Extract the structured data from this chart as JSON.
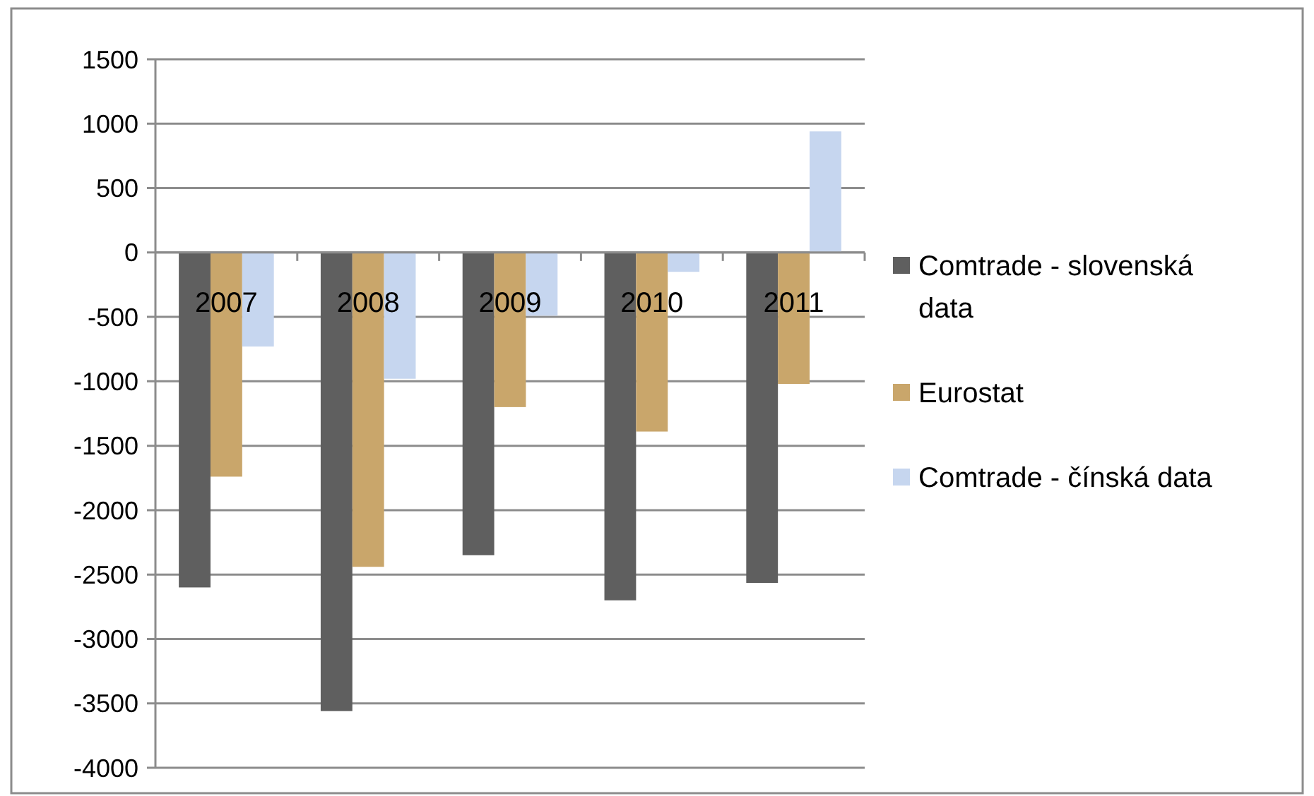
{
  "chart_data": {
    "type": "bar",
    "categories": [
      "2007",
      "2008",
      "2009",
      "2010",
      "2011"
    ],
    "series": [
      {
        "name": "Comtrade - slovenská data",
        "color": "#5f5f5f",
        "values": [
          -2600,
          -3560,
          -2350,
          -2700,
          -2565
        ]
      },
      {
        "name": "Eurostat",
        "color": "#c9a66b",
        "values": [
          -1740,
          -2440,
          -1200,
          -1390,
          -1020
        ]
      },
      {
        "name": "Comtrade - čínská data",
        "color": "#c6d6ef",
        "values": [
          -730,
          -980,
          -490,
          -150,
          940
        ]
      }
    ],
    "ylim": [
      -4000,
      1500
    ],
    "yticks": [
      -4000,
      -3500,
      -3000,
      -2500,
      -2000,
      -1500,
      -1000,
      -500,
      0,
      500,
      1000,
      1500
    ],
    "grid": "y",
    "legend": "right"
  }
}
